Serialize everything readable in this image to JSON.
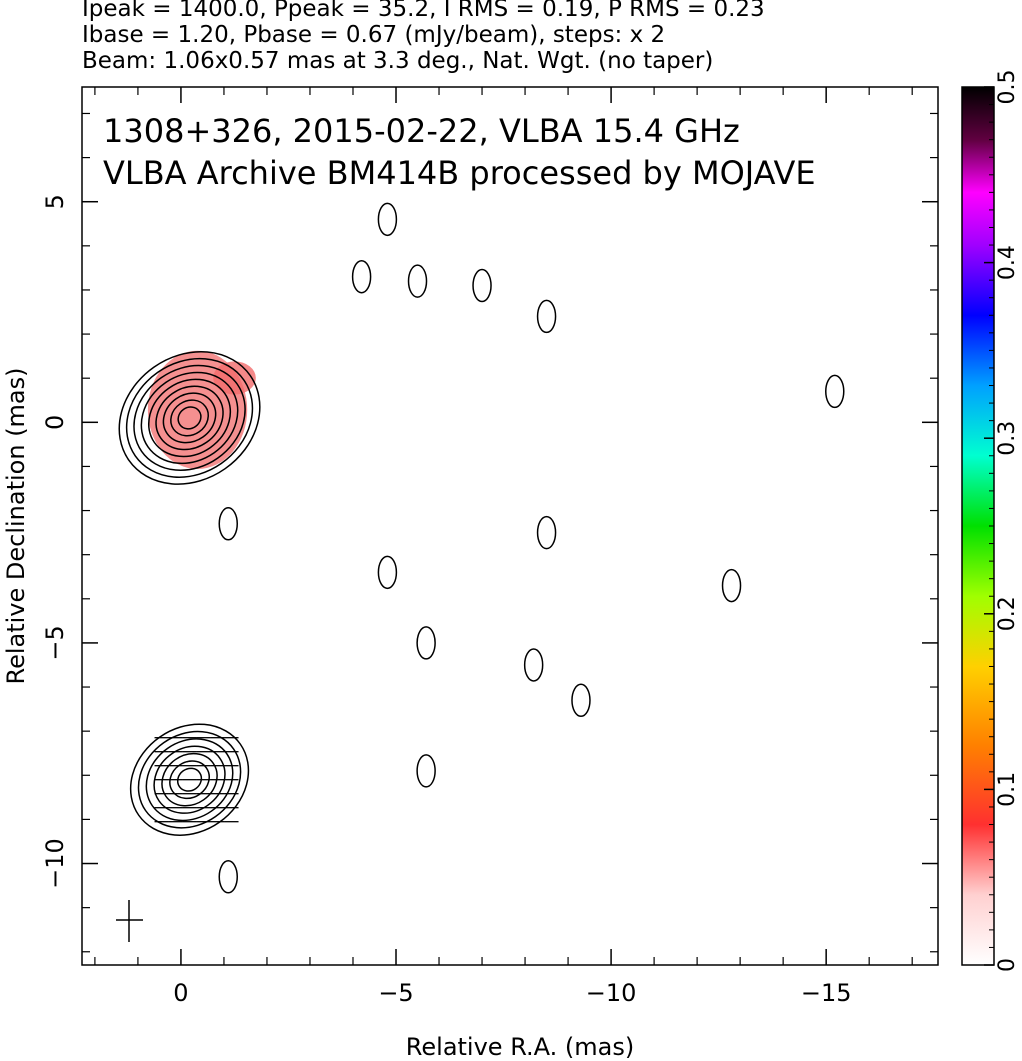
{
  "header": {
    "line1": "Ipeak = 1400.0, Ppeak = 35.2, I RMS = 0.19, P RMS = 0.23",
    "line2": "Ibase = 1.20, Pbase = 0.67 (mJy/beam), steps: x 2",
    "line3": "Beam: 1.06x0.57 mas at 3.3 deg., Nat. Wgt. (no taper)"
  },
  "plot_text": {
    "line1": "1308+326, 2015-02-22, VLBA 15.4 GHz",
    "line2": "VLBA Archive BM414B processed by MOJAVE"
  },
  "colors": {
    "frame": "#000000",
    "contour": "#000000",
    "pol_fill": "#f26b6b"
  },
  "chart_data": {
    "type": "contour",
    "title": "1308+326, 2015-02-22, VLBA 15.4 GHz",
    "subtitle": "VLBA Archive BM414B processed by MOJAVE",
    "xlabel": "Relative R.A. (mas)",
    "ylabel": "Relative Declination (mas)",
    "xlim": [
      2.3,
      -17.6
    ],
    "ylim": [
      -12.3,
      7.6
    ],
    "x_ticks": [
      "0",
      "−5",
      "−10",
      "−15"
    ],
    "y_ticks": [
      "−10",
      "−5",
      "0",
      "5"
    ],
    "x_tick_values": [
      0,
      -5,
      -10,
      -15
    ],
    "y_tick_values": [
      -10,
      -5,
      0,
      5
    ],
    "colorbar": {
      "min": 0,
      "max": 0.5,
      "ticks": [
        "0",
        "0.1",
        "0.2",
        "0.3",
        "0.4",
        "0.5"
      ],
      "tick_values": [
        0,
        0.1,
        0.2,
        0.3,
        0.4,
        0.5
      ]
    },
    "stats": {
      "Ipeak": 1400.0,
      "Ppeak": 35.2,
      "I_RMS": 0.19,
      "P_RMS": 0.23,
      "Ibase": 1.2,
      "Pbase": 0.67,
      "units": "mJy/beam",
      "step_factor": 2
    },
    "beam": {
      "major_mas": 1.06,
      "minor_mas": 0.57,
      "pa_deg": 3.3,
      "weighting": "Nat. Wgt. (no taper)"
    },
    "core": {
      "x": -0.2,
      "y": 0.1,
      "contour_levels": 9
    },
    "beam_plot_center": {
      "x": -0.2,
      "y": -8.1,
      "contour_levels": 7
    },
    "isolated_contours": [
      {
        "x": -5.5,
        "y": 3.2
      },
      {
        "x": -8.5,
        "y": 2.4
      },
      {
        "x": -4.8,
        "y": 4.6
      },
      {
        "x": -8.5,
        "y": -2.5
      },
      {
        "x": -4.8,
        "y": -3.4
      },
      {
        "x": -5.7,
        "y": -5.0
      },
      {
        "x": -8.2,
        "y": -5.5
      },
      {
        "x": -9.3,
        "y": -6.3
      },
      {
        "x": -15.2,
        "y": 0.7
      },
      {
        "x": -12.8,
        "y": -3.7
      },
      {
        "x": -1.1,
        "y": -2.3
      },
      {
        "x": -1.1,
        "y": -10.3
      },
      {
        "x": -5.7,
        "y": -7.9
      },
      {
        "x": -4.2,
        "y": 3.3
      },
      {
        "x": -7.0,
        "y": 3.1
      }
    ]
  }
}
